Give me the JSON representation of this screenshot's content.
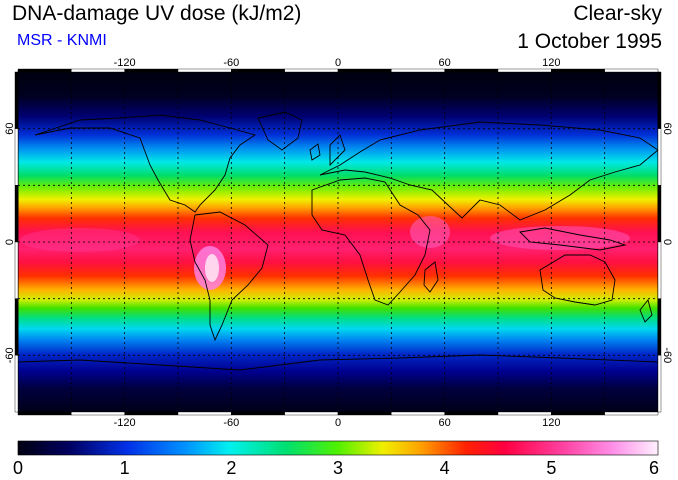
{
  "header": {
    "title": "DNA-damage UV dose (kJ/m2)",
    "subtitle": "MSR - KNMI",
    "condition": "Clear-sky",
    "date": "1 October 1995"
  },
  "colors": {
    "subtitle": "#0000ff",
    "scale": [
      "#000010",
      "#000060",
      "#0020e0",
      "#0090ff",
      "#00f0f0",
      "#00e070",
      "#50f000",
      "#e8f000",
      "#ffa000",
      "#ff3000",
      "#ff0040",
      "#ff40a0",
      "#ff80e0",
      "#ffe8ff"
    ]
  },
  "map": {
    "longitude_ticks": [
      "-120",
      "-60",
      "0",
      "60",
      "120"
    ],
    "latitude_ticks": [
      "60",
      "0",
      "-60"
    ],
    "gridlines": "dashed every 30 degrees",
    "coastlines": "black outline"
  },
  "colorbar": {
    "min": 0,
    "max": 6,
    "labels": [
      "0",
      "1",
      "2",
      "3",
      "4",
      "5",
      "6"
    ]
  },
  "chart_data": {
    "type": "heatmap",
    "title": "DNA-damage UV dose (kJ/m2)",
    "variable": "DNA-damage UV dose",
    "unit": "kJ/m2",
    "scale_range": [
      0,
      6
    ],
    "x_axis": "longitude",
    "y_axis": "latitude",
    "xlim": [
      -180,
      180
    ],
    "ylim": [
      -90,
      90
    ]
  }
}
